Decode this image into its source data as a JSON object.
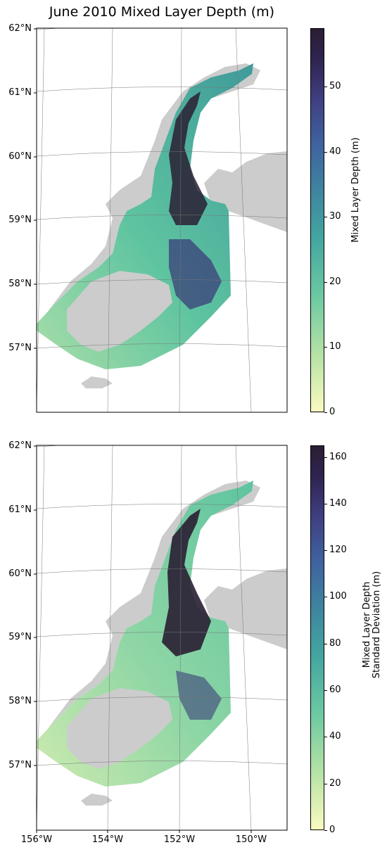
{
  "title": "June 2010 Mixed Layer Depth (m)",
  "colors": {
    "land": "#cccccc",
    "ocean_low": "#fafac0",
    "ocean_mid": "#5ec4a0",
    "ocean_high": "#2a1e33",
    "grid": "#777777"
  },
  "lat_ticks": [
    "62°N",
    "61°N",
    "60°N",
    "59°N",
    "58°N",
    "57°N"
  ],
  "lon_ticks": [
    "156°W",
    "154°W",
    "152°W",
    "150°W"
  ],
  "panels": [
    {
      "name": "mixed-layer-depth",
      "colorbar": {
        "label_line1": "Mixed Layer Depth (m)",
        "label_line2": "",
        "ticks": [
          "0",
          "10",
          "20",
          "30",
          "40",
          "50"
        ],
        "tick_values": [
          0,
          10,
          20,
          30,
          40,
          50
        ],
        "vmax": 59
      }
    },
    {
      "name": "mixed-layer-depth-std",
      "colorbar": {
        "label_line1": "Mixed Layer Depth",
        "label_line2": "Standard Deviation (m)",
        "ticks": [
          "0",
          "20",
          "40",
          "60",
          "80",
          "100",
          "120",
          "140",
          "160"
        ],
        "tick_values": [
          0,
          20,
          40,
          60,
          80,
          100,
          120,
          140,
          160
        ],
        "vmax": 165
      }
    }
  ]
}
